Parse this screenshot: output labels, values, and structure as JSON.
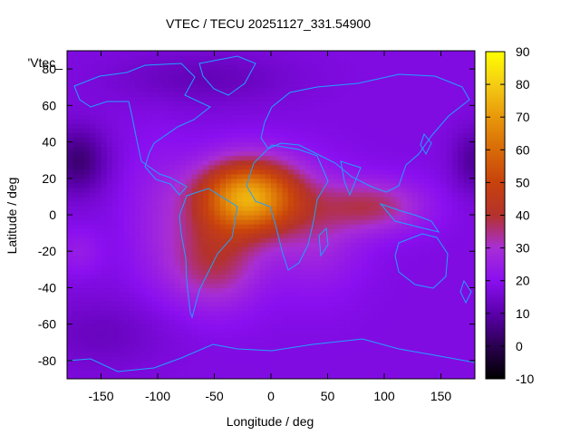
{
  "chart_data": {
    "type": "heatmap",
    "title": "VTEC / TECU 20251127_331.54900",
    "xlabel": "Longitude / deg",
    "ylabel": "Latitude / deg",
    "key_label": "'Vtec_",
    "xlim": [
      -180,
      180
    ],
    "ylim": [
      -90,
      90
    ],
    "x_ticks": [
      -150,
      -100,
      -50,
      0,
      50,
      100,
      150
    ],
    "y_ticks": [
      -80,
      -60,
      -40,
      -20,
      0,
      20,
      40,
      60,
      80
    ],
    "colorbar": {
      "range": [
        -10,
        90
      ],
      "ticks": [
        -10,
        0,
        10,
        20,
        30,
        40,
        50,
        60,
        70,
        80,
        90
      ],
      "palette": "gnuplot rgbformulae 7,5,15 (black-purple-red-orange-yellow)"
    },
    "grid": false,
    "features": [
      {
        "name": "equatorial anomaly peak",
        "lon_range": [
          -60,
          30
        ],
        "lat_range": [
          0,
          25
        ],
        "vtec": 80
      },
      {
        "name": "South America / Atlantic enhancement",
        "lon_range": [
          -80,
          20
        ],
        "lat_range": [
          -45,
          10
        ],
        "vtec": 50
      },
      {
        "name": "Indian Ocean tongue",
        "lon_range": [
          40,
          130
        ],
        "lat_range": [
          -15,
          20
        ],
        "vtec": 45
      },
      {
        "name": "Pacific night-side minimum",
        "lon_range": [
          -180,
          -140
        ],
        "lat_range": [
          20,
          40
        ],
        "vtec": 0
      },
      {
        "name": "Polar background",
        "lat_range": [
          -90,
          -60
        ],
        "vtec": 15
      }
    ],
    "overlay": "world coastlines (cyan)"
  }
}
